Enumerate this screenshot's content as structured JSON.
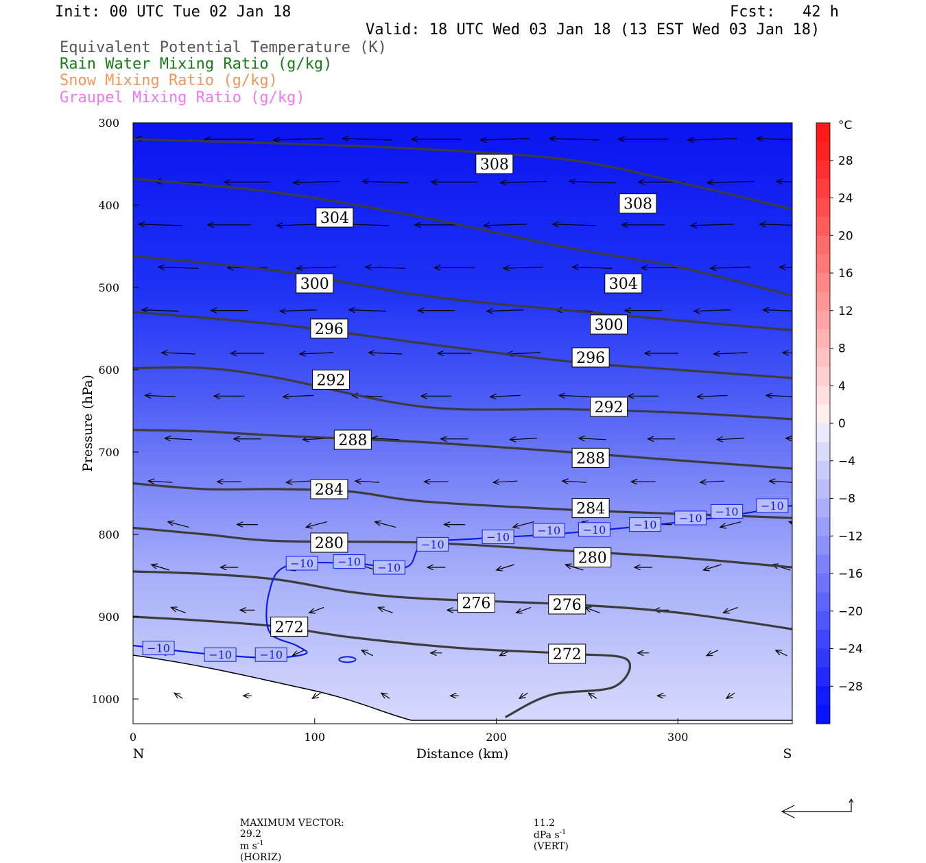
{
  "header": {
    "init": "Init: 00 UTC Tue 02 Jan 18",
    "fcst": "Fcst:   42 h",
    "valid": "Valid: 18 UTC Wed 03 Jan 18 (13 EST Wed 03 Jan 18)"
  },
  "legend": [
    {
      "label": "Equivalent Potential Temperature (K)",
      "color": "#555555"
    },
    {
      "label": "Rain Water Mixing Ratio (g/kg)",
      "color": "#1a7a1a"
    },
    {
      "label": "Snow Mixing Ratio (g/kg)",
      "color": "#f0965a"
    },
    {
      "label": "Graupel Mixing Ratio (g/kg)",
      "color": "#f078f0"
    }
  ],
  "chart_data": {
    "type": "heatmap",
    "xlabel": "Distance (km)",
    "ylabel": "Pressure (hPa)",
    "xlim": [
      0,
      363
    ],
    "ylim": [
      1030,
      300
    ],
    "x_ticks": [
      0,
      100,
      200,
      300
    ],
    "y_ticks": [
      300,
      400,
      500,
      600,
      700,
      800,
      900,
      1000
    ],
    "x_end_labels": {
      "left": "N",
      "right": "S"
    },
    "colorbar": {
      "unit": "°C",
      "levels": [
        28,
        24,
        20,
        16,
        12,
        8,
        4,
        0,
        -4,
        -8,
        -12,
        -16,
        -20,
        -24,
        -28
      ],
      "labels": [
        "28",
        "24",
        "20",
        "16",
        "12",
        "8",
        "4",
        "0",
        "−4",
        "−8",
        "−12",
        "−16",
        "−20",
        "−24",
        "−28"
      ],
      "range": [
        -32,
        32
      ]
    },
    "theta_e_contours": [
      {
        "value": "308",
        "points": [
          [
            0,
            320
          ],
          [
            80,
            325
          ],
          [
            160,
            332
          ],
          [
            240,
            345
          ],
          [
            300,
            372
          ],
          [
            363,
            405
          ]
        ],
        "labels": [
          [
            199,
            350
          ],
          [
            278,
            398
          ]
        ]
      },
      {
        "value": "304",
        "points": [
          [
            0,
            368
          ],
          [
            80,
            385
          ],
          [
            160,
            415
          ],
          [
            240,
            452
          ],
          [
            300,
            475
          ],
          [
            363,
            510
          ]
        ],
        "labels": [
          [
            111,
            415
          ],
          [
            270,
            495
          ]
        ]
      },
      {
        "value": "300",
        "points": [
          [
            0,
            462
          ],
          [
            80,
            480
          ],
          [
            160,
            510
          ],
          [
            240,
            528
          ],
          [
            300,
            540
          ],
          [
            363,
            552
          ]
        ],
        "labels": [
          [
            100,
            495
          ],
          [
            262,
            545
          ]
        ]
      },
      {
        "value": "296",
        "points": [
          [
            0,
            530
          ],
          [
            80,
            545
          ],
          [
            160,
            568
          ],
          [
            240,
            590
          ],
          [
            300,
            600
          ],
          [
            363,
            610
          ]
        ],
        "labels": [
          [
            108,
            550
          ],
          [
            252,
            585
          ]
        ]
      },
      {
        "value": "292",
        "points": [
          [
            0,
            598
          ],
          [
            40,
            598
          ],
          [
            80,
            610
          ],
          [
            160,
            645
          ],
          [
            240,
            648
          ],
          [
            300,
            652
          ],
          [
            363,
            660
          ]
        ],
        "labels": [
          [
            109,
            612
          ],
          [
            262,
            645
          ]
        ]
      },
      {
        "value": "288",
        "points": [
          [
            0,
            673
          ],
          [
            40,
            675
          ],
          [
            80,
            680
          ],
          [
            160,
            688
          ],
          [
            240,
            700
          ],
          [
            300,
            710
          ],
          [
            363,
            720
          ]
        ],
        "labels": [
          [
            121,
            685
          ],
          [
            252,
            707
          ]
        ]
      },
      {
        "value": "284",
        "points": [
          [
            0,
            738
          ],
          [
            40,
            745
          ],
          [
            80,
            745
          ],
          [
            120,
            748
          ],
          [
            160,
            760
          ],
          [
            240,
            770
          ],
          [
            300,
            775
          ],
          [
            363,
            780
          ]
        ],
        "labels": [
          [
            108,
            745
          ],
          [
            252,
            768
          ]
        ]
      },
      {
        "value": "280",
        "points": [
          [
            0,
            792
          ],
          [
            40,
            800
          ],
          [
            80,
            808
          ],
          [
            160,
            810
          ],
          [
            240,
            820
          ],
          [
            300,
            828
          ],
          [
            363,
            840
          ]
        ],
        "labels": [
          [
            108,
            810
          ],
          [
            253,
            828
          ]
        ]
      },
      {
        "value": "276",
        "points": [
          [
            0,
            845
          ],
          [
            40,
            848
          ],
          [
            80,
            855
          ],
          [
            120,
            870
          ],
          [
            160,
            878
          ],
          [
            240,
            885
          ],
          [
            300,
            895
          ],
          [
            363,
            915
          ]
        ],
        "labels": [
          [
            189,
            883
          ],
          [
            239,
            885
          ]
        ]
      },
      {
        "value": "272",
        "points": [
          [
            0,
            900
          ],
          [
            40,
            905
          ],
          [
            80,
            912
          ],
          [
            120,
            925
          ],
          [
            180,
            938
          ],
          [
            240,
            945
          ],
          [
            272,
            952
          ],
          [
            265,
            985
          ],
          [
            230,
            995
          ],
          [
            205,
            1022
          ]
        ],
        "labels": [
          [
            86,
            912
          ],
          [
            239,
            945
          ]
        ]
      }
    ],
    "temperature_contour_minus10": {
      "value": "−10",
      "points": [
        [
          0,
          935
        ],
        [
          40,
          945
        ],
        [
          75,
          950
        ],
        [
          95,
          945
        ],
        [
          90,
          935
        ],
        [
          75,
          918
        ],
        [
          75,
          870
        ],
        [
          85,
          838
        ],
        [
          120,
          835
        ],
        [
          150,
          840
        ],
        [
          160,
          812
        ],
        [
          190,
          805
        ],
        [
          230,
          800
        ],
        [
          280,
          790
        ],
        [
          320,
          780
        ],
        [
          363,
          765
        ]
      ],
      "labels": [
        [
          14,
          938
        ],
        [
          48,
          946
        ],
        [
          76,
          946
        ],
        [
          93,
          835
        ],
        [
          119,
          833
        ],
        [
          141,
          840
        ],
        [
          165,
          812
        ],
        [
          201,
          803
        ],
        [
          229,
          795
        ],
        [
          254,
          794
        ],
        [
          282,
          788
        ],
        [
          307,
          780
        ],
        [
          327,
          772
        ],
        [
          352,
          765
        ]
      ]
    },
    "wind_vectors": {
      "note": "horizontal/vertical circulation vectors",
      "max_horiz": "29.2",
      "max_vert": "11.2"
    }
  },
  "footer": {
    "max_vector_label": "MAXIMUM VECTOR:",
    "horiz_value": "29.2",
    "horiz_unit": "m s",
    "horiz_exp": "-1",
    "horiz_tag": "(HORIZ)",
    "vert_value": "11.2",
    "vert_unit": "dPa s",
    "vert_exp": "-1",
    "vert_tag": "(VERT)"
  }
}
